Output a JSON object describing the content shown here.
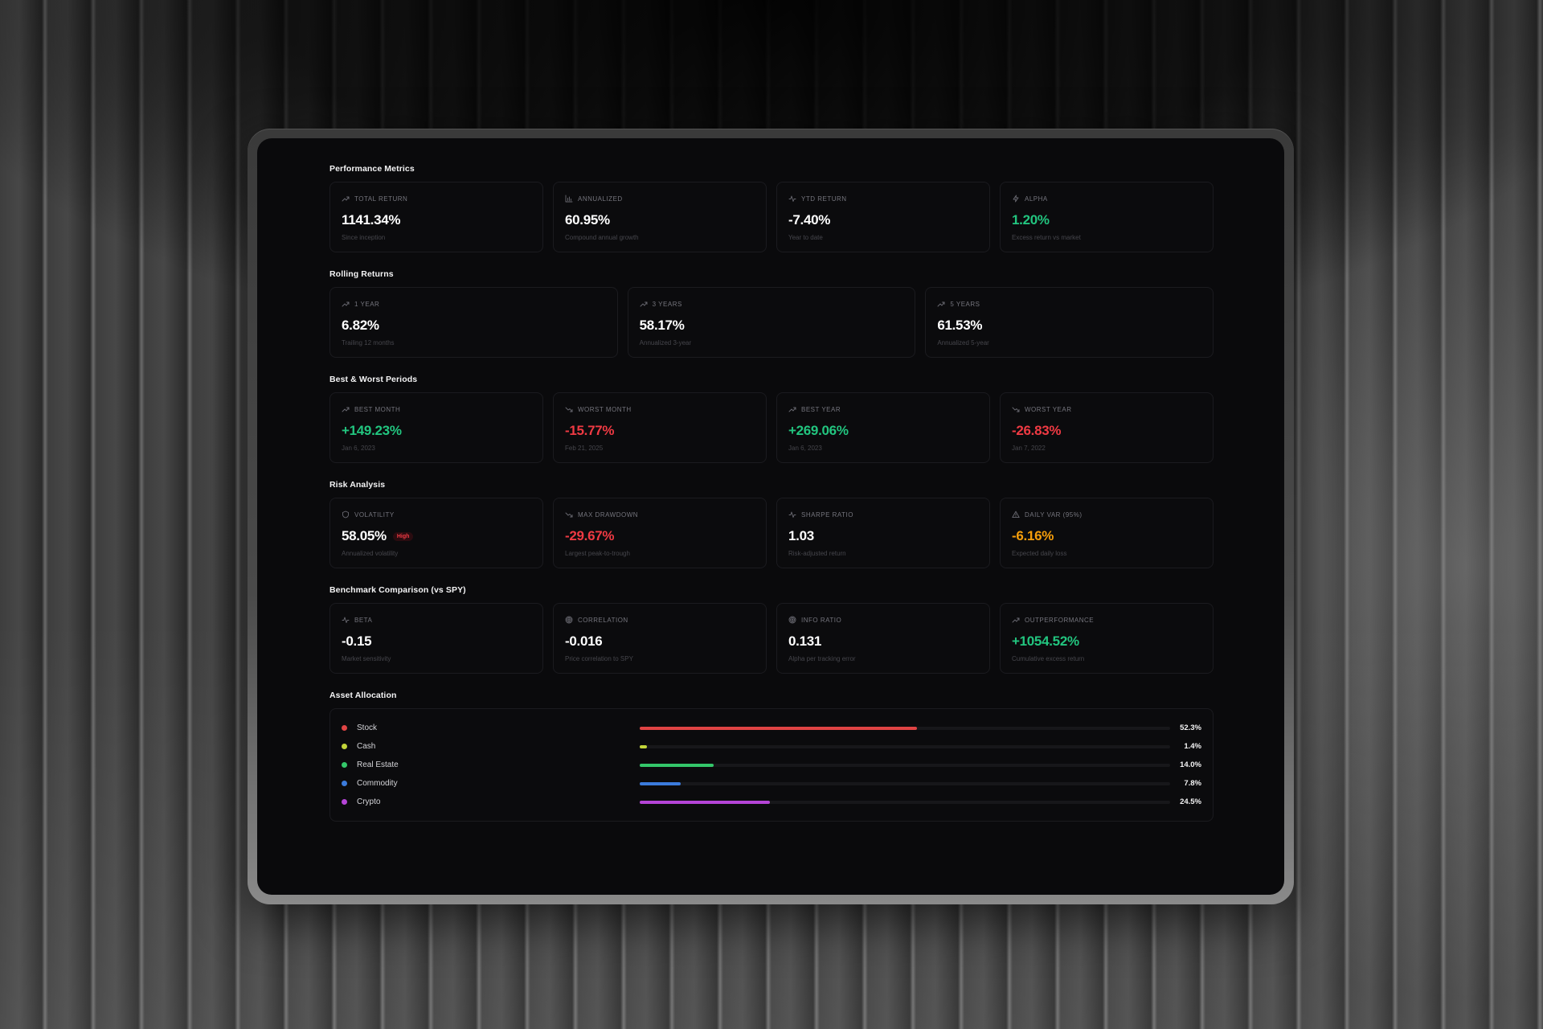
{
  "sections": {
    "performance": {
      "title": "Performance Metrics",
      "cards": [
        {
          "icon": "trending-up-icon",
          "label": "TOTAL RETURN",
          "value": "1141.34%",
          "sub": "Since inception",
          "tone": "white"
        },
        {
          "icon": "bar-chart-icon",
          "label": "ANNUALIZED",
          "value": "60.95%",
          "sub": "Compound annual growth",
          "tone": "white"
        },
        {
          "icon": "activity-icon",
          "label": "YTD RETURN",
          "value": "-7.40%",
          "sub": "Year to date",
          "tone": "white"
        },
        {
          "icon": "zap-icon",
          "label": "ALPHA",
          "value": "1.20%",
          "sub": "Excess return vs market",
          "tone": "green"
        }
      ]
    },
    "rolling": {
      "title": "Rolling Returns",
      "cards": [
        {
          "icon": "trending-up-icon",
          "label": "1 YEAR",
          "value": "6.82%",
          "sub": "Trailing 12 months",
          "tone": "white"
        },
        {
          "icon": "trending-up-icon",
          "label": "3 YEARS",
          "value": "58.17%",
          "sub": "Annualized 3-year",
          "tone": "white"
        },
        {
          "icon": "trending-up-icon",
          "label": "5 YEARS",
          "value": "61.53%",
          "sub": "Annualized 5-year",
          "tone": "white"
        }
      ]
    },
    "periods": {
      "title": "Best & Worst Periods",
      "cards": [
        {
          "icon": "trending-up-icon",
          "label": "BEST MONTH",
          "value": "+149.23%",
          "sub": "Jan 6, 2023",
          "tone": "green"
        },
        {
          "icon": "trending-down-icon",
          "label": "WORST MONTH",
          "value": "-15.77%",
          "sub": "Feb 21, 2025",
          "tone": "red"
        },
        {
          "icon": "trending-up-icon",
          "label": "BEST YEAR",
          "value": "+269.06%",
          "sub": "Jan 6, 2023",
          "tone": "green"
        },
        {
          "icon": "trending-down-icon",
          "label": "WORST YEAR",
          "value": "-26.83%",
          "sub": "Jan 7, 2022",
          "tone": "red"
        }
      ]
    },
    "risk": {
      "title": "Risk Analysis",
      "cards": [
        {
          "icon": "shield-icon",
          "label": "VOLATILITY",
          "value": "58.05%",
          "badge": "High",
          "sub": "Annualized volatility",
          "tone": "white"
        },
        {
          "icon": "trending-down-icon",
          "label": "MAX DRAWDOWN",
          "value": "-29.67%",
          "sub": "Largest peak-to-trough",
          "tone": "red"
        },
        {
          "icon": "activity-icon",
          "label": "SHARPE RATIO",
          "value": "1.03",
          "sub": "Risk-adjusted return",
          "tone": "white"
        },
        {
          "icon": "alert-triangle-icon",
          "label": "DAILY VAR (95%)",
          "value": "-6.16%",
          "sub": "Expected daily loss",
          "tone": "orange"
        }
      ]
    },
    "benchmark": {
      "title": "Benchmark Comparison (vs SPY)",
      "cards": [
        {
          "icon": "activity-icon",
          "label": "BETA",
          "value": "-0.15",
          "sub": "Market sensitivity",
          "tone": "white"
        },
        {
          "icon": "target-icon",
          "label": "CORRELATION",
          "value": "-0.016",
          "sub": "Price correlation to SPY",
          "tone": "white"
        },
        {
          "icon": "target-icon",
          "label": "INFO RATIO",
          "value": "0.131",
          "sub": "Alpha per tracking error",
          "tone": "white"
        },
        {
          "icon": "trending-up-icon",
          "label": "OUTPERFORMANCE",
          "value": "+1054.52%",
          "sub": "Cumulative excess return",
          "tone": "green"
        }
      ]
    },
    "allocation": {
      "title": "Asset Allocation",
      "items": [
        {
          "name": "Stock",
          "pct": "52.3%",
          "value": 52.3,
          "color": "#e04444"
        },
        {
          "name": "Cash",
          "pct": "1.4%",
          "value": 1.4,
          "color": "#c3d53a"
        },
        {
          "name": "Real Estate",
          "pct": "14.0%",
          "value": 14.0,
          "color": "#34c76a"
        },
        {
          "name": "Commodity",
          "pct": "7.8%",
          "value": 7.8,
          "color": "#3b7bdc"
        },
        {
          "name": "Crypto",
          "pct": "24.5%",
          "value": 24.5,
          "color": "#b544d6"
        }
      ]
    }
  },
  "colors": {
    "positive": "#22c57f",
    "negative": "#ef3a43",
    "warning": "#f59e0b",
    "background": "#0a0a0c",
    "card_border": "#1b1b1f"
  }
}
